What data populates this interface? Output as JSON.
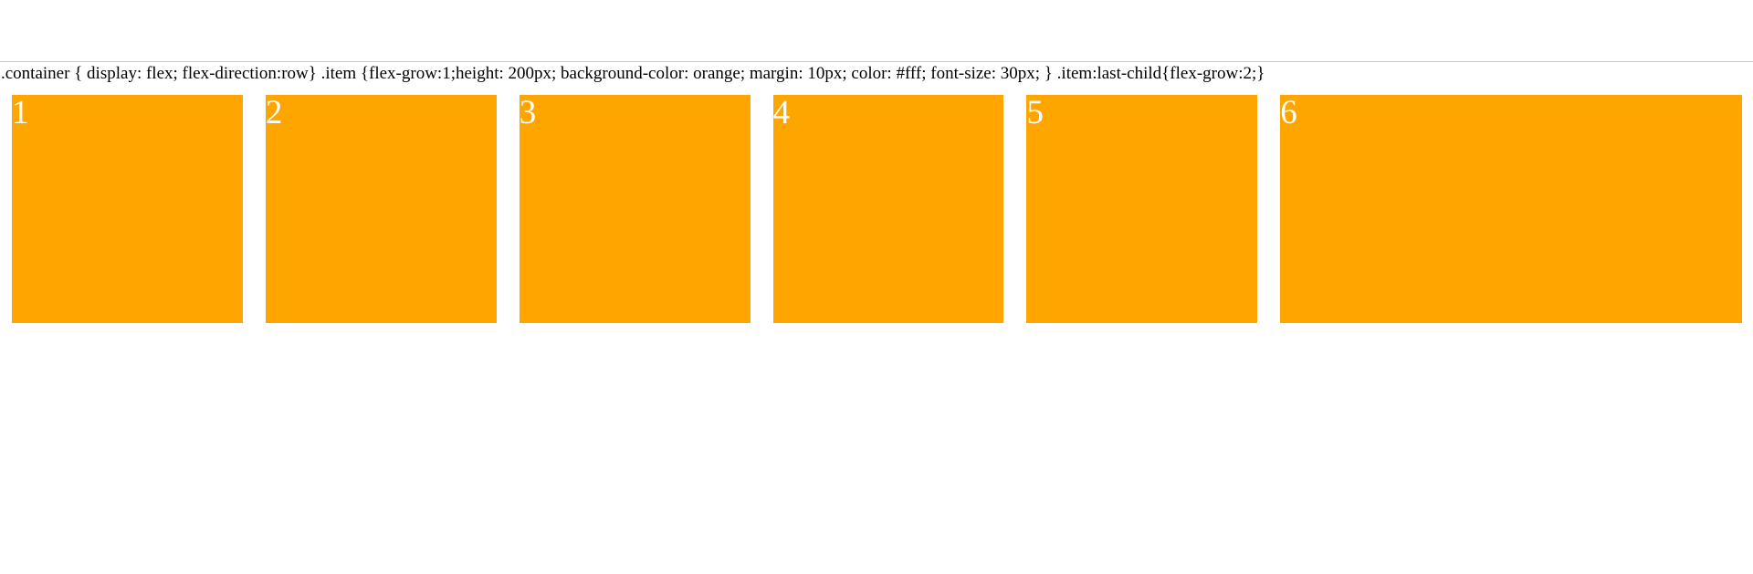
{
  "css_text": ".container { display: flex; flex-direction:row} .item {flex-grow:1;height: 200px; background-color: orange; margin: 10px; color: #fff; font-size: 30px; } .item:last-child{flex-grow:2;}",
  "items": [
    {
      "label": "1"
    },
    {
      "label": "2"
    },
    {
      "label": "3"
    },
    {
      "label": "4"
    },
    {
      "label": "5"
    },
    {
      "label": "6"
    }
  ],
  "colors": {
    "item_background": "#ffa500",
    "item_text": "#ffffff",
    "page_background": "#ffffff"
  }
}
